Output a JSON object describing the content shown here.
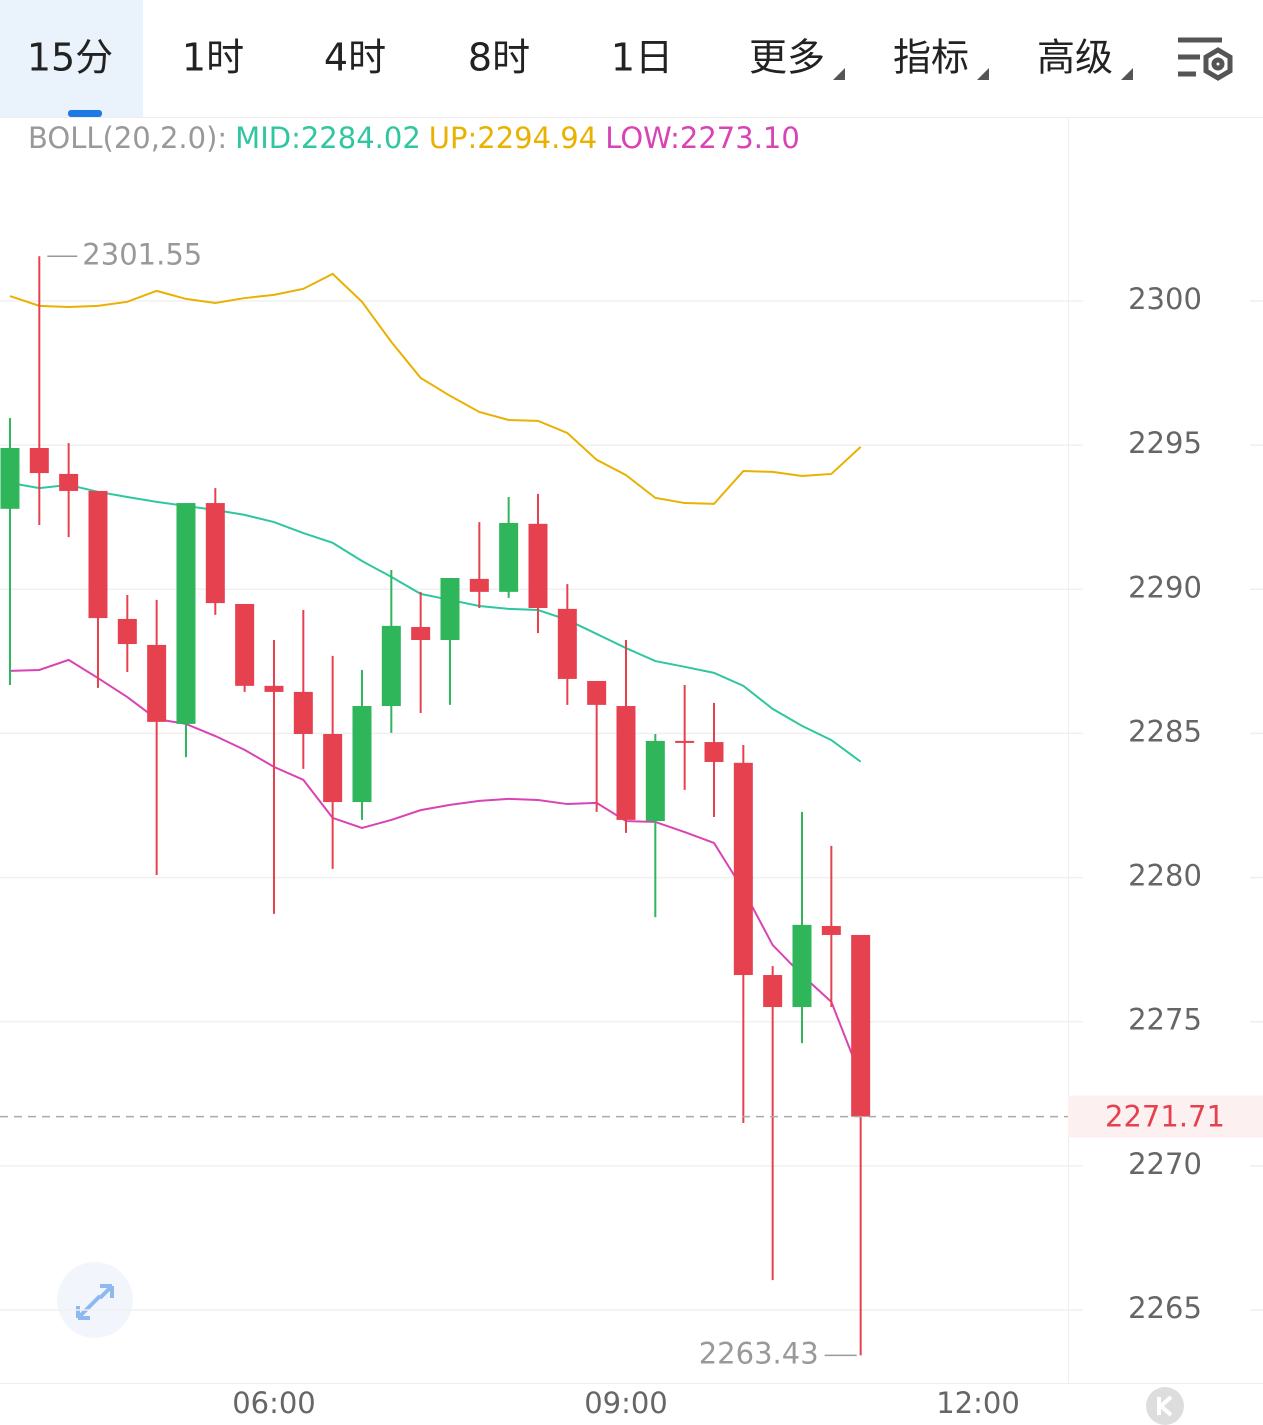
{
  "tabs": {
    "items": [
      "15分",
      "1时",
      "4时",
      "8时",
      "1日",
      "更多",
      "指标",
      "高级"
    ],
    "active": 0
  },
  "chart_data": {
    "type": "candlestick",
    "indicator": {
      "label": "BOLL(20,2.0):",
      "items": [
        {
          "text": "MID:2284.02",
          "color": "#2fc6a0"
        },
        {
          "text": "UP:2294.94",
          "color": "#e9b100"
        },
        {
          "text": "LOW:2273.10",
          "color": "#d843b5"
        }
      ]
    },
    "x": [
      3.75,
      4,
      4.25,
      4.5,
      4.75,
      5,
      5.25,
      5.5,
      5.75,
      6,
      6.25,
      6.5,
      6.75,
      7,
      7.25,
      7.5,
      7.75,
      8,
      8.25,
      8.5,
      8.75,
      9,
      9.25,
      9.5,
      9.75,
      10,
      10.25,
      10.5,
      10.75,
      11
    ],
    "open": [
      2292.79,
      2294.9,
      2294.0,
      2293.41,
      2288.97,
      2288.07,
      2285.33,
      2292.99,
      2289.49,
      2286.65,
      2286.44,
      2284.98,
      2282.62,
      2285.95,
      2288.69,
      2288.24,
      2290.36,
      2289.91,
      2292.27,
      2289.32,
      2286.82,
      2285.95,
      2281.96,
      2284.74,
      2284.7,
      2283.98,
      2276.62,
      2275.51,
      2278.32,
      2278.01
    ],
    "high": [
      2295.94,
      2301.55,
      2295.07,
      2293.41,
      2289.8,
      2289.63,
      2292.99,
      2293.51,
      2289.49,
      2288.24,
      2289.28,
      2287.69,
      2287.2,
      2290.67,
      2289.91,
      2290.39,
      2292.33,
      2293.2,
      2293.31,
      2290.18,
      2286.82,
      2288.24,
      2284.98,
      2286.68,
      2286.06,
      2284.6,
      2276.93,
      2282.28,
      2281.1,
      2278.01
    ],
    "low": [
      2286.68,
      2292.23,
      2291.81,
      2286.58,
      2287.13,
      2280.09,
      2284.18,
      2289.11,
      2286.44,
      2278.74,
      2283.77,
      2280.3,
      2282.0,
      2285.02,
      2285.71,
      2285.99,
      2289.35,
      2289.7,
      2288.48,
      2285.99,
      2282.28,
      2281.55,
      2278.63,
      2283.04,
      2282.1,
      2271.49,
      2266.04,
      2274.26,
      2275.51,
      2263.43
    ],
    "close": [
      2294.9,
      2294.03,
      2293.41,
      2289.0,
      2288.1,
      2285.4,
      2292.99,
      2289.52,
      2286.65,
      2286.44,
      2284.98,
      2282.62,
      2285.95,
      2288.73,
      2288.24,
      2290.39,
      2289.91,
      2292.3,
      2289.35,
      2286.89,
      2285.99,
      2282.0,
      2284.74,
      2284.74,
      2284.01,
      2276.62,
      2275.51,
      2278.36,
      2278.01,
      2271.71
    ],
    "up_color": "#2fb55a",
    "down_color": "#e5414f",
    "series": [
      {
        "color": "#e9b100",
        "values": [
          2300.17,
          2299.83,
          2299.79,
          2299.83,
          2299.97,
          2300.35,
          2300.07,
          2299.93,
          2300.1,
          2300.21,
          2300.42,
          2300.94,
          2299.97,
          2298.58,
          2297.33,
          2296.71,
          2296.15,
          2295.87,
          2295.84,
          2295.42,
          2294.49,
          2293.96,
          2293.17,
          2292.99,
          2292.96,
          2294.1,
          2294.07,
          2293.93,
          2294.0,
          2294.94
        ]
      },
      {
        "color": "#2fc6a0",
        "values": [
          2293.69,
          2293.51,
          2293.62,
          2293.38,
          2293.2,
          2293.03,
          2292.89,
          2292.75,
          2292.58,
          2292.33,
          2291.95,
          2291.61,
          2290.98,
          2290.43,
          2289.84,
          2289.63,
          2289.42,
          2289.32,
          2289.28,
          2288.94,
          2288.45,
          2287.96,
          2287.51,
          2287.31,
          2287.1,
          2286.65,
          2285.85,
          2285.26,
          2284.77,
          2284.02
        ]
      },
      {
        "color": "#d843b5",
        "values": [
          2287.17,
          2287.2,
          2287.55,
          2286.92,
          2286.26,
          2285.5,
          2285.33,
          2284.91,
          2284.43,
          2283.84,
          2283.39,
          2282.07,
          2281.72,
          2282.0,
          2282.34,
          2282.52,
          2282.66,
          2282.73,
          2282.69,
          2282.55,
          2282.59,
          2281.96,
          2281.93,
          2281.58,
          2281.2,
          2279.57,
          2277.66,
          2276.62,
          2275.69,
          2273.1
        ]
      }
    ],
    "max_mark": 2301.55,
    "min_mark": 2263.43,
    "last_price": 2271.71,
    "xlim": [
      3.665,
      12.767
    ],
    "xticks": [
      {
        "value": 6,
        "label": "06:00"
      },
      {
        "value": 9,
        "label": "09:00"
      },
      {
        "value": 12,
        "label": "12:00"
      }
    ],
    "ylim": [
      2262.47,
      2306.38
    ],
    "yticks": [
      2265,
      2270,
      2275,
      2280,
      2285,
      2290,
      2295,
      2300
    ],
    "grid": true
  }
}
